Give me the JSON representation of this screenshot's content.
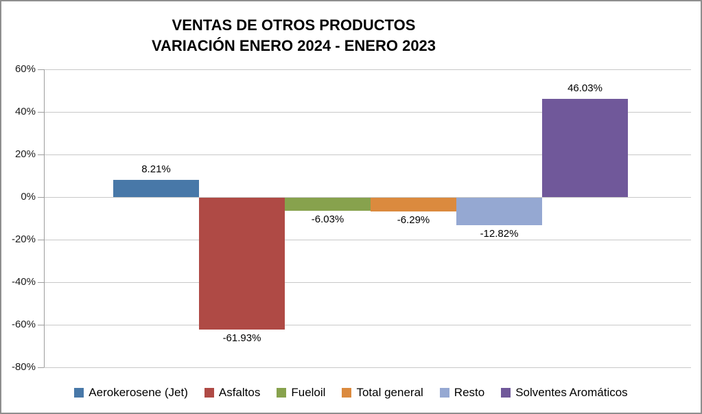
{
  "chart_data": {
    "type": "bar",
    "title": "VENTAS DE OTROS PRODUCTOS",
    "subtitle": "VARIACIÓN ENERO 2024 - ENERO 2023",
    "categories": [
      "Aerokerosene (Jet)",
      "Asfaltos",
      "Fueloil",
      "Total general",
      "Resto",
      "Solventes Aromáticos"
    ],
    "values": [
      8.21,
      -61.93,
      -6.03,
      -6.29,
      -12.82,
      46.03
    ],
    "data_labels": [
      "8.21%",
      "-61.93%",
      "-6.03%",
      "-6.29%",
      "-12.82%",
      "46.03%"
    ],
    "series_colors": [
      "#4878A8",
      "#AF4A45",
      "#87A24D",
      "#DB8A3E",
      "#95A8D2",
      "#70589A"
    ],
    "xlabel": "",
    "ylabel": "",
    "ylim": [
      -80,
      60
    ],
    "ytick_step": 20,
    "ytick_labels": [
      "60%",
      "40%",
      "20%",
      "0%",
      "-20%",
      "-40%",
      "-60%",
      "-80%"
    ],
    "grid": true,
    "gridline_color": "#C8C8C8",
    "axis_color": "#9C9C9C",
    "legend_position": "bottom"
  }
}
